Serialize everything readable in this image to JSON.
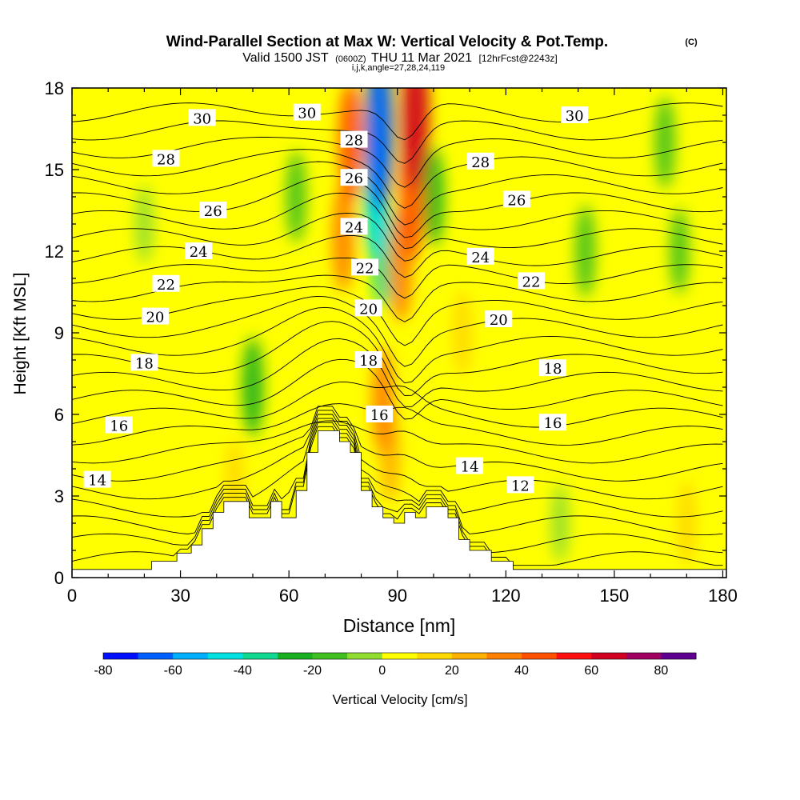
{
  "header": {
    "title": "Wind-Parallel Section at Max W: Vertical Velocity & Pot.Temp.",
    "copyright": "(C)",
    "valid_prefix": "Valid 1500 JST",
    "valid_utc": "(0600Z)",
    "valid_date": "THU 11 Mar 2021",
    "forecast": "[12hrFcst@2243z]",
    "indices": "i,j,k,angle=27,28,24,119"
  },
  "chart_data": {
    "type": "heatmap",
    "xlabel": "Distance [nm]",
    "ylabel": "Height [Kft MSL]",
    "xlim": [
      0,
      181
    ],
    "ylim": [
      0,
      18
    ],
    "xticks": [
      0,
      30,
      60,
      90,
      120,
      150,
      180
    ],
    "yticks": [
      0,
      3,
      6,
      9,
      12,
      15,
      18
    ],
    "colorbar": {
      "label": "Vertical Velocity [cm/s]",
      "range": [
        -80,
        90
      ],
      "step": 10,
      "tick_labels": [
        -80,
        -60,
        -40,
        -20,
        0,
        20,
        40,
        60,
        80
      ],
      "colors": [
        "#0010ff",
        "#0060ff",
        "#00b0ff",
        "#00e0e0",
        "#10d890",
        "#18b020",
        "#40c020",
        "#90dd30",
        "#ffff00",
        "#ffd800",
        "#ffb000",
        "#ff8000",
        "#ff5000",
        "#ff1010",
        "#d00020",
        "#a00060",
        "#600090"
      ]
    },
    "velocity_features": [
      {
        "x": 85,
        "y": 16.5,
        "value": -70
      },
      {
        "x": 84,
        "y": 14,
        "value": -45
      },
      {
        "x": 86,
        "y": 12,
        "value": -35
      },
      {
        "x": 95,
        "y": 17,
        "value": 60
      },
      {
        "x": 94,
        "y": 14,
        "value": 45
      },
      {
        "x": 91,
        "y": 11.5,
        "value": 35
      },
      {
        "x": 77,
        "y": 16,
        "value": 40
      },
      {
        "x": 75,
        "y": 12.5,
        "value": 30
      },
      {
        "x": 86,
        "y": 6.5,
        "value": 30
      },
      {
        "x": 88,
        "y": 4.5,
        "value": 20
      },
      {
        "x": 100,
        "y": 14,
        "value": -25
      },
      {
        "x": 50,
        "y": 7,
        "value": -25
      },
      {
        "x": 62,
        "y": 14,
        "value": -20
      },
      {
        "x": 142,
        "y": 12,
        "value": -20
      },
      {
        "x": 164,
        "y": 16,
        "value": -20
      },
      {
        "x": 168,
        "y": 12,
        "value": -15
      },
      {
        "x": 20,
        "y": 13,
        "value": -10
      },
      {
        "x": 45,
        "y": 3.5,
        "value": 15
      },
      {
        "x": 108,
        "y": 9,
        "value": 15
      },
      {
        "x": 170,
        "y": 2,
        "value": 15
      },
      {
        "x": 135,
        "y": 2,
        "value": -10
      },
      {
        "x": 8,
        "y": 10,
        "value": 5
      }
    ],
    "potential_temperature_contours": [
      {
        "label": "12"
      },
      {
        "label": "14"
      },
      {
        "label": "16"
      },
      {
        "label": "18"
      },
      {
        "label": "20"
      },
      {
        "label": "22"
      },
      {
        "label": "24"
      },
      {
        "label": "26"
      },
      {
        "label": "28"
      },
      {
        "label": "30"
      }
    ],
    "contour_labels": [
      {
        "text": "30",
        "x": 36,
        "y": 16.9
      },
      {
        "text": "30",
        "x": 65,
        "y": 17.1
      },
      {
        "text": "28",
        "x": 78,
        "y": 16.1
      },
      {
        "text": "30",
        "x": 139,
        "y": 17.0
      },
      {
        "text": "28",
        "x": 26,
        "y": 15.4
      },
      {
        "text": "28",
        "x": 113,
        "y": 15.3
      },
      {
        "text": "26",
        "x": 78,
        "y": 14.7
      },
      {
        "text": "26",
        "x": 39,
        "y": 13.5
      },
      {
        "text": "26",
        "x": 123,
        "y": 13.9
      },
      {
        "text": "24",
        "x": 78,
        "y": 12.9
      },
      {
        "text": "24",
        "x": 35,
        "y": 12.0
      },
      {
        "text": "24",
        "x": 113,
        "y": 11.8
      },
      {
        "text": "22",
        "x": 81,
        "y": 11.4
      },
      {
        "text": "22",
        "x": 26,
        "y": 10.8
      },
      {
        "text": "22",
        "x": 127,
        "y": 10.9
      },
      {
        "text": "20",
        "x": 82,
        "y": 9.9
      },
      {
        "text": "20",
        "x": 23,
        "y": 9.6
      },
      {
        "text": "20",
        "x": 118,
        "y": 9.5
      },
      {
        "text": "18",
        "x": 82,
        "y": 8.0
      },
      {
        "text": "18",
        "x": 20,
        "y": 7.9
      },
      {
        "text": "18",
        "x": 133,
        "y": 7.7
      },
      {
        "text": "16",
        "x": 85,
        "y": 6.0
      },
      {
        "text": "16",
        "x": 13,
        "y": 5.6
      },
      {
        "text": "16",
        "x": 133,
        "y": 5.7
      },
      {
        "text": "14",
        "x": 7,
        "y": 3.6
      },
      {
        "text": "14",
        "x": 110,
        "y": 4.1
      },
      {
        "text": "12",
        "x": 124,
        "y": 3.4
      }
    ],
    "terrain": [
      [
        0,
        0.3
      ],
      [
        22,
        0.3
      ],
      [
        22,
        0.6
      ],
      [
        29,
        0.6
      ],
      [
        29,
        0.9
      ],
      [
        33,
        0.9
      ],
      [
        33,
        1.2
      ],
      [
        36,
        1.2
      ],
      [
        36,
        1.8
      ],
      [
        39,
        1.8
      ],
      [
        39,
        2.4
      ],
      [
        42,
        2.4
      ],
      [
        42,
        2.8
      ],
      [
        49,
        2.8
      ],
      [
        49,
        2.2
      ],
      [
        55,
        2.2
      ],
      [
        55,
        2.8
      ],
      [
        58,
        2.8
      ],
      [
        58,
        2.2
      ],
      [
        62,
        2.2
      ],
      [
        62,
        3.2
      ],
      [
        65,
        3.2
      ],
      [
        65,
        4.6
      ],
      [
        68,
        4.6
      ],
      [
        68,
        5.4
      ],
      [
        74,
        5.4
      ],
      [
        74,
        5.0
      ],
      [
        77,
        5.0
      ],
      [
        77,
        4.6
      ],
      [
        80,
        4.6
      ],
      [
        80,
        3.2
      ],
      [
        83,
        3.2
      ],
      [
        83,
        2.6
      ],
      [
        86,
        2.6
      ],
      [
        86,
        2.2
      ],
      [
        89,
        2.2
      ],
      [
        89,
        2.0
      ],
      [
        92,
        2.0
      ],
      [
        92,
        2.4
      ],
      [
        95,
        2.4
      ],
      [
        95,
        2.2
      ],
      [
        98,
        2.2
      ],
      [
        98,
        2.6
      ],
      [
        104,
        2.6
      ],
      [
        104,
        2.2
      ],
      [
        107,
        2.2
      ],
      [
        107,
        1.4
      ],
      [
        110,
        1.4
      ],
      [
        110,
        1.0
      ],
      [
        116,
        1.0
      ],
      [
        116,
        0.6
      ],
      [
        122,
        0.6
      ],
      [
        122,
        0.3
      ],
      [
        181,
        0.3
      ]
    ]
  }
}
